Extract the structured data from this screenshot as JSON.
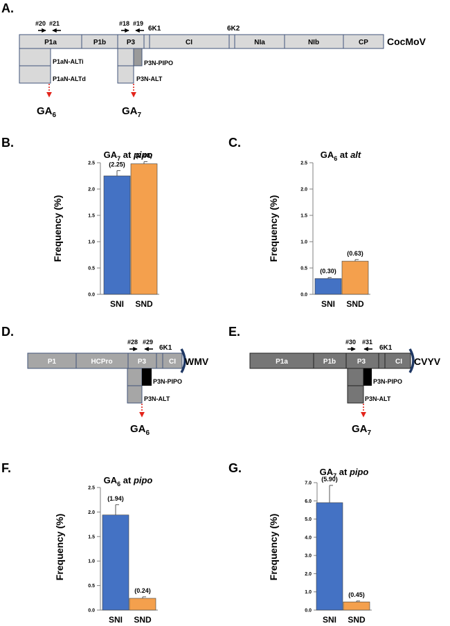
{
  "panel_a": {
    "letter": "A.",
    "virus": "CocMoV",
    "primers": [
      "#20",
      "#21",
      "#18",
      "#19"
    ],
    "segments": [
      "P1a",
      "P1b",
      "P3",
      "6K1",
      "CI",
      "6K2",
      "NIa",
      "NIb",
      "CP"
    ],
    "orfs": [
      "P1aN-ALTi",
      "P1aN-ALTd",
      "P3N-PIPO",
      "P3N-ALT"
    ],
    "ga_labels": [
      {
        "base": "GA",
        "sub": "6"
      },
      {
        "base": "GA",
        "sub": "7"
      }
    ]
  },
  "panel_d": {
    "letter": "D.",
    "virus": "WMV",
    "primers": [
      "#28",
      "#29"
    ],
    "segments": [
      "P1",
      "HCPro",
      "P3",
      "6K1",
      "CI"
    ],
    "orfs": [
      "P3N-PIPO",
      "P3N-ALT"
    ],
    "ga_label": {
      "base": "GA",
      "sub": "6"
    }
  },
  "panel_e": {
    "letter": "E.",
    "virus": "CVYV",
    "primers": [
      "#30",
      "#31"
    ],
    "segments": [
      "P1a",
      "P1b",
      "P3",
      "6K1",
      "CI"
    ],
    "orfs": [
      "P3N-PIPO",
      "P3N-ALT"
    ],
    "ga_label": {
      "base": "GA",
      "sub": "7"
    }
  },
  "colors": {
    "sni": "#4472c4",
    "snd": "#f4a04d",
    "box_light": "#d9d9d9",
    "box_medium": "#a6a6a6",
    "box_dark": "#767676",
    "outline": "#41547a",
    "arrow_red": "#e3241b",
    "pipo_dark": "#000000",
    "pipo_cocmov": "#9a9a9a"
  },
  "chart_data": [
    {
      "id": "B",
      "letter": "B.",
      "type": "bar",
      "title_prefix": "GA",
      "title_sub": "7",
      "title_mid": " at ",
      "title_italic": "pipo",
      "ylabel": "Frequency (%)",
      "categories": [
        "SNI",
        "SND"
      ],
      "values": [
        2.25,
        2.48
      ],
      "errors": [
        0.1,
        0.04
      ],
      "value_labels": [
        "(2.25)",
        "(2.48)"
      ],
      "ylim": [
        0,
        2.5
      ],
      "yticks": [
        "0.0",
        "0.5",
        "1.0",
        "1.5",
        "2.0",
        "2.5"
      ]
    },
    {
      "id": "C",
      "letter": "C.",
      "type": "bar",
      "title_prefix": "GA",
      "title_sub": "6",
      "title_mid": " at ",
      "title_italic": "alt",
      "ylabel": "Frequency (%)",
      "categories": [
        "SNI",
        "SND"
      ],
      "values": [
        0.3,
        0.63
      ],
      "errors": [
        0.02,
        0.03
      ],
      "value_labels": [
        "(0.30)",
        "(0.63)"
      ],
      "ylim": [
        0,
        2.5
      ],
      "yticks": [
        "0.0",
        "0.5",
        "1.0",
        "1.5",
        "2.0",
        "2.5"
      ]
    },
    {
      "id": "F",
      "letter": "F.",
      "type": "bar",
      "title_prefix": "GA",
      "title_sub": "6",
      "title_mid": " at ",
      "title_italic": "pipo",
      "ylabel": "Frequency (%)",
      "categories": [
        "SNI",
        "SND"
      ],
      "values": [
        1.94,
        0.24
      ],
      "errors": [
        0.21,
        0.03
      ],
      "value_labels": [
        "(1.94)",
        "(0.24)"
      ],
      "ylim": [
        0,
        2.5
      ],
      "yticks": [
        "0.0",
        "0.5",
        "1.0",
        "1.5",
        "2.0",
        "2.5"
      ]
    },
    {
      "id": "G",
      "letter": "G.",
      "type": "bar",
      "title_prefix": "GA",
      "title_sub": "7",
      "title_mid": " at ",
      "title_italic": "pipo",
      "ylabel": "Frequency (%)",
      "categories": [
        "SNI",
        "SND"
      ],
      "values": [
        5.9,
        0.45
      ],
      "errors": [
        0.95,
        0.05
      ],
      "value_labels": [
        "(5.90)",
        "(0.45)"
      ],
      "ylim": [
        0,
        7.0
      ],
      "yticks": [
        "0.0",
        "1.0",
        "2.0",
        "3.0",
        "4.0",
        "5.0",
        "6.0",
        "7.0"
      ]
    }
  ]
}
